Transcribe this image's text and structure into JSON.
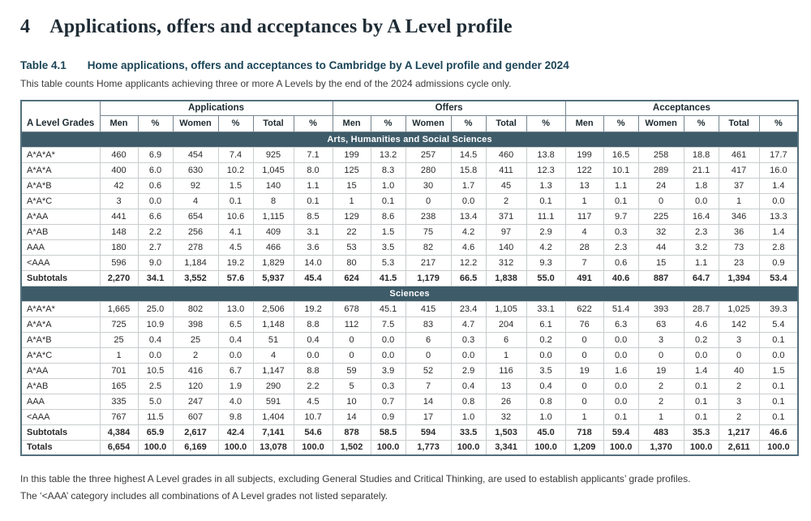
{
  "page": {
    "title_number": "4",
    "title": "Applications, offers and acceptances by A Level profile",
    "table_label": "Table 4.1",
    "table_title": "Home applications, offers and acceptances to Cambridge by A Level profile and gender 2024",
    "subtitle": "This table counts Home applicants achieving three or more A Levels by the end of the 2024 admissions cycle only.",
    "footnote_1": "In this table the three highest A Level grades in all subjects, excluding General Studies and Critical Thinking, are used to establish applicants’ grade profiles.",
    "footnote_2": "The ‘<AAA’ category includes all combinations of A Level grades not listed separately."
  },
  "colors": {
    "section_bar": "#3e5b69",
    "heading": "#1b4557",
    "table_border": "#54707d"
  },
  "table": {
    "row_header": "A Level Grades",
    "groups": [
      "Applications",
      "Offers",
      "Acceptances"
    ],
    "sub_headers": [
      "Men",
      "%",
      "Women",
      "%",
      "Total",
      "%"
    ],
    "sections": [
      {
        "name": "Arts, Humanities and Social Sciences",
        "rows": [
          {
            "grade": "A*A*A*",
            "values": [
              "460",
              "6.9",
              "454",
              "7.4",
              "925",
              "7.1",
              "199",
              "13.2",
              "257",
              "14.5",
              "460",
              "13.8",
              "199",
              "16.5",
              "258",
              "18.8",
              "461",
              "17.7"
            ]
          },
          {
            "grade": "A*A*A",
            "values": [
              "400",
              "6.0",
              "630",
              "10.2",
              "1,045",
              "8.0",
              "125",
              "8.3",
              "280",
              "15.8",
              "411",
              "12.3",
              "122",
              "10.1",
              "289",
              "21.1",
              "417",
              "16.0"
            ]
          },
          {
            "grade": "A*A*B",
            "values": [
              "42",
              "0.6",
              "92",
              "1.5",
              "140",
              "1.1",
              "15",
              "1.0",
              "30",
              "1.7",
              "45",
              "1.3",
              "13",
              "1.1",
              "24",
              "1.8",
              "37",
              "1.4"
            ]
          },
          {
            "grade": "A*A*C",
            "values": [
              "3",
              "0.0",
              "4",
              "0.1",
              "8",
              "0.1",
              "1",
              "0.1",
              "0",
              "0.0",
              "2",
              "0.1",
              "1",
              "0.1",
              "0",
              "0.0",
              "1",
              "0.0"
            ]
          },
          {
            "grade": "A*AA",
            "values": [
              "441",
              "6.6",
              "654",
              "10.6",
              "1,115",
              "8.5",
              "129",
              "8.6",
              "238",
              "13.4",
              "371",
              "11.1",
              "117",
              "9.7",
              "225",
              "16.4",
              "346",
              "13.3"
            ]
          },
          {
            "grade": "A*AB",
            "values": [
              "148",
              "2.2",
              "256",
              "4.1",
              "409",
              "3.1",
              "22",
              "1.5",
              "75",
              "4.2",
              "97",
              "2.9",
              "4",
              "0.3",
              "32",
              "2.3",
              "36",
              "1.4"
            ]
          },
          {
            "grade": "AAA",
            "values": [
              "180",
              "2.7",
              "278",
              "4.5",
              "466",
              "3.6",
              "53",
              "3.5",
              "82",
              "4.6",
              "140",
              "4.2",
              "28",
              "2.3",
              "44",
              "3.2",
              "73",
              "2.8"
            ]
          },
          {
            "grade": "<AAA",
            "values": [
              "596",
              "9.0",
              "1,184",
              "19.2",
              "1,829",
              "14.0",
              "80",
              "5.3",
              "217",
              "12.2",
              "312",
              "9.3",
              "7",
              "0.6",
              "15",
              "1.1",
              "23",
              "0.9"
            ]
          }
        ],
        "subtotals": {
          "grade": "Subtotals",
          "values": [
            "2,270",
            "34.1",
            "3,552",
            "57.6",
            "5,937",
            "45.4",
            "624",
            "41.5",
            "1,179",
            "66.5",
            "1,838",
            "55.0",
            "491",
            "40.6",
            "887",
            "64.7",
            "1,394",
            "53.4"
          ]
        }
      },
      {
        "name": "Sciences",
        "rows": [
          {
            "grade": "A*A*A*",
            "values": [
              "1,665",
              "25.0",
              "802",
              "13.0",
              "2,506",
              "19.2",
              "678",
              "45.1",
              "415",
              "23.4",
              "1,105",
              "33.1",
              "622",
              "51.4",
              "393",
              "28.7",
              "1,025",
              "39.3"
            ]
          },
          {
            "grade": "A*A*A",
            "values": [
              "725",
              "10.9",
              "398",
              "6.5",
              "1,148",
              "8.8",
              "112",
              "7.5",
              "83",
              "4.7",
              "204",
              "6.1",
              "76",
              "6.3",
              "63",
              "4.6",
              "142",
              "5.4"
            ]
          },
          {
            "grade": "A*A*B",
            "values": [
              "25",
              "0.4",
              "25",
              "0.4",
              "51",
              "0.4",
              "0",
              "0.0",
              "6",
              "0.3",
              "6",
              "0.2",
              "0",
              "0.0",
              "3",
              "0.2",
              "3",
              "0.1"
            ]
          },
          {
            "grade": "A*A*C",
            "values": [
              "1",
              "0.0",
              "2",
              "0.0",
              "4",
              "0.0",
              "0",
              "0.0",
              "0",
              "0.0",
              "1",
              "0.0",
              "0",
              "0.0",
              "0",
              "0.0",
              "0",
              "0.0"
            ]
          },
          {
            "grade": "A*AA",
            "values": [
              "701",
              "10.5",
              "416",
              "6.7",
              "1,147",
              "8.8",
              "59",
              "3.9",
              "52",
              "2.9",
              "116",
              "3.5",
              "19",
              "1.6",
              "19",
              "1.4",
              "40",
              "1.5"
            ]
          },
          {
            "grade": "A*AB",
            "values": [
              "165",
              "2.5",
              "120",
              "1.9",
              "290",
              "2.2",
              "5",
              "0.3",
              "7",
              "0.4",
              "13",
              "0.4",
              "0",
              "0.0",
              "2",
              "0.1",
              "2",
              "0.1"
            ]
          },
          {
            "grade": "AAA",
            "values": [
              "335",
              "5.0",
              "247",
              "4.0",
              "591",
              "4.5",
              "10",
              "0.7",
              "14",
              "0.8",
              "26",
              "0.8",
              "0",
              "0.0",
              "2",
              "0.1",
              "3",
              "0.1"
            ]
          },
          {
            "grade": "<AAA",
            "values": [
              "767",
              "11.5",
              "607",
              "9.8",
              "1,404",
              "10.7",
              "14",
              "0.9",
              "17",
              "1.0",
              "32",
              "1.0",
              "1",
              "0.1",
              "1",
              "0.1",
              "2",
              "0.1"
            ]
          }
        ],
        "subtotals": {
          "grade": "Subtotals",
          "values": [
            "4,384",
            "65.9",
            "2,617",
            "42.4",
            "7,141",
            "54.6",
            "878",
            "58.5",
            "594",
            "33.5",
            "1,503",
            "45.0",
            "718",
            "59.4",
            "483",
            "35.3",
            "1,217",
            "46.6"
          ]
        }
      }
    ],
    "totals": {
      "grade": "Totals",
      "values": [
        "6,654",
        "100.0",
        "6,169",
        "100.0",
        "13,078",
        "100.0",
        "1,502",
        "100.0",
        "1,773",
        "100.0",
        "3,341",
        "100.0",
        "1,209",
        "100.0",
        "1,370",
        "100.0",
        "2,611",
        "100.0"
      ]
    }
  }
}
